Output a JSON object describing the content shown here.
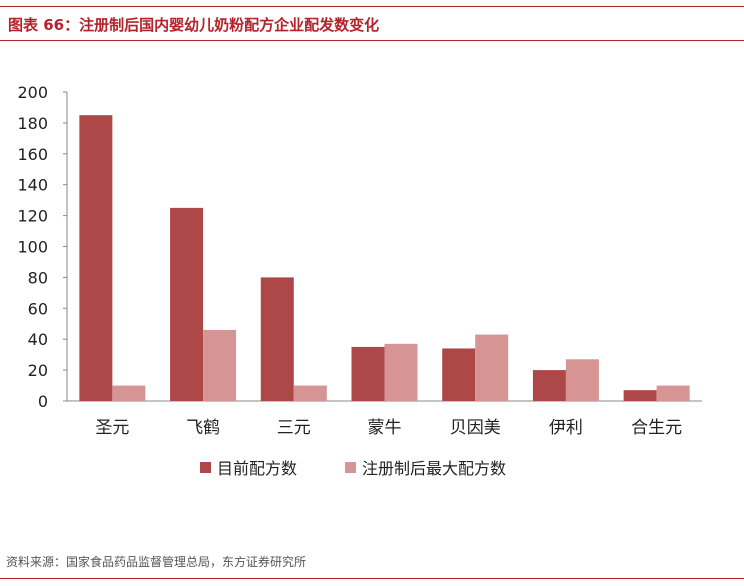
{
  "figure_title": "图表 66：注册制后国内婴幼儿奶粉配方企业配发数变化",
  "source_note": "资料来源：国家食品药品监督管理总局，东方证券研究所",
  "colors": {
    "accent": "#b5232a",
    "series_current": "#ae4848",
    "series_max": "#d69494"
  },
  "chart_data": {
    "type": "bar",
    "categories": [
      "圣元",
      "飞鹤",
      "三元",
      "蒙牛",
      "贝因美",
      "伊利",
      "合生元"
    ],
    "series": [
      {
        "name": "目前配方数",
        "values": [
          185,
          125,
          80,
          35,
          34,
          20,
          7
        ]
      },
      {
        "name": "注册制后最大配方数",
        "values": [
          10,
          46,
          10,
          37,
          43,
          27,
          10
        ]
      }
    ],
    "y_ticks": [
      "0",
      "20",
      "40",
      "60",
      "80",
      "100",
      "120",
      "140",
      "160",
      "180",
      "200"
    ],
    "ylim": [
      0,
      200
    ],
    "grid": false,
    "legend_position": "bottom"
  }
}
